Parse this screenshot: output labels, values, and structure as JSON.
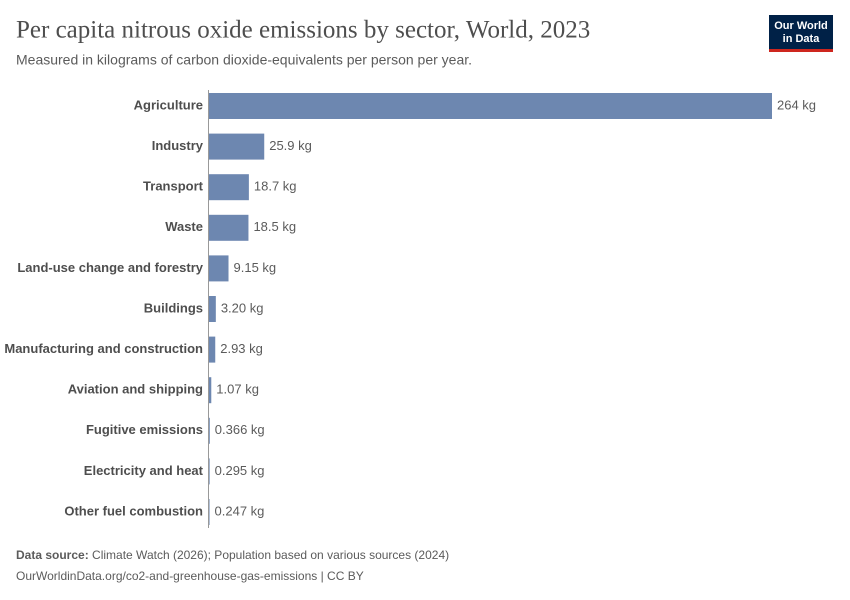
{
  "chart_data": {
    "type": "bar",
    "orientation": "horizontal",
    "title": "Per capita nitrous oxide emissions by sector, World, 2023",
    "subtitle": "Measured in kilograms of carbon dioxide-equivalents per person per year.",
    "categories": [
      "Agriculture",
      "Industry",
      "Transport",
      "Waste",
      "Land-use change and forestry",
      "Buildings",
      "Manufacturing and construction",
      "Aviation and shipping",
      "Fugitive emissions",
      "Electricity and heat",
      "Other fuel combustion"
    ],
    "values": [
      264,
      25.9,
      18.7,
      18.5,
      9.15,
      3.2,
      2.93,
      1.07,
      0.366,
      0.295,
      0.247
    ],
    "value_labels": [
      "264 kg",
      "25.9 kg",
      "18.7 kg",
      "18.5 kg",
      "9.15 kg",
      "3.20 kg",
      "2.93 kg",
      "1.07 kg",
      "0.366 kg",
      "0.295 kg",
      "0.247 kg"
    ],
    "color": "#6d87b0"
  },
  "footer": {
    "source_label": "Data source:",
    "source": "Climate Watch (2026); Population based on various sources (2024)",
    "url": "OurWorldinData.org/co2-and-greenhouse-gas-emissions | CC BY"
  },
  "logo": {
    "line1": "Our World",
    "line2": "in Data"
  }
}
